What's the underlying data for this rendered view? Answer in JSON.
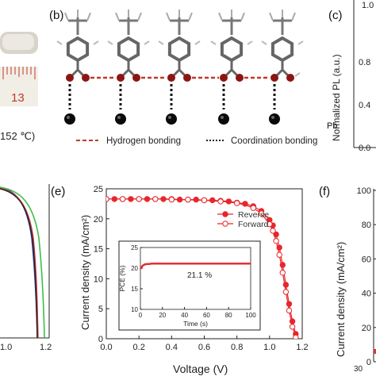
{
  "panels": {
    "a": {
      "ruler_number": "13",
      "temperature_text": "152 ℃)"
    },
    "b": {
      "label": "(b)",
      "atom_label": "Pb",
      "legend": {
        "hydrogen": "Hydrogen bonding",
        "coordination": "Coordination bonding"
      }
    },
    "c": {
      "label": "(c)",
      "ylabel": "Normalized PL (a.u.)",
      "top_tick": "1.0",
      "yticks": [
        "0.8",
        "0.4",
        "0.0"
      ]
    },
    "d": {
      "xticks": [
        "1.0",
        "1.2"
      ]
    },
    "f": {
      "label": "(f)",
      "ylabel": "Current density (mA/cm²)",
      "yticks": [
        "100",
        "80",
        "60",
        "40",
        "20",
        "0"
      ],
      "xtick_partial": "30"
    }
  },
  "chart_data": [
    {
      "panel": "e",
      "type": "line",
      "label": "(e)",
      "xlabel": "Voltage (V)",
      "ylabel": "Current density (mA/cm²)",
      "xlim": [
        0,
        1.2
      ],
      "ylim": [
        0,
        25
      ],
      "xticks": [
        "0.0",
        "0.2",
        "0.4",
        "0.6",
        "0.8",
        "1.0",
        "1.2"
      ],
      "yticks": [
        "0",
        "5",
        "10",
        "15",
        "20",
        "25"
      ],
      "legend_position": "top-right",
      "series": [
        {
          "name": "Reverse",
          "marker": "filled-circle",
          "color": "#e8262b",
          "x": [
            0,
            0.05,
            0.1,
            0.15,
            0.2,
            0.25,
            0.3,
            0.35,
            0.4,
            0.45,
            0.5,
            0.55,
            0.6,
            0.65,
            0.7,
            0.75,
            0.8,
            0.85,
            0.9,
            0.95,
            1.0,
            1.02,
            1.04,
            1.06,
            1.08,
            1.1,
            1.12,
            1.14,
            1.16,
            1.18
          ],
          "values": [
            23.3,
            23.3,
            23.3,
            23.3,
            23.3,
            23.3,
            23.3,
            23.3,
            23.3,
            23.2,
            23.2,
            23.2,
            23.1,
            23.1,
            23.0,
            22.9,
            22.7,
            22.5,
            22.1,
            21.3,
            19.8,
            18.9,
            17.4,
            15.2,
            12.3,
            9.0,
            5.8,
            2.9,
            0.8,
            -0.5
          ]
        },
        {
          "name": "Forward",
          "marker": "open-circle",
          "color": "#e8262b",
          "x": [
            0,
            0.05,
            0.1,
            0.15,
            0.2,
            0.25,
            0.3,
            0.35,
            0.4,
            0.45,
            0.5,
            0.55,
            0.6,
            0.65,
            0.7,
            0.75,
            0.8,
            0.85,
            0.9,
            0.95,
            1.0,
            1.02,
            1.04,
            1.06,
            1.08,
            1.1,
            1.12,
            1.14,
            1.16,
            1.18
          ],
          "values": [
            23.3,
            23.3,
            23.3,
            23.3,
            23.3,
            23.3,
            23.3,
            23.3,
            23.2,
            23.2,
            23.2,
            23.1,
            23.1,
            23.0,
            22.9,
            22.8,
            22.6,
            22.3,
            21.8,
            20.9,
            19.1,
            18.0,
            16.3,
            14.0,
            11.0,
            7.8,
            4.7,
            2.0,
            0.2,
            -0.5
          ]
        }
      ],
      "inset": {
        "type": "line",
        "xlabel": "Time (s)",
        "ylabel": "PCE (%)",
        "xlim": [
          0,
          100
        ],
        "ylim": [
          10,
          25
        ],
        "xticks": [
          "0",
          "20",
          "40",
          "60",
          "80",
          "100"
        ],
        "yticks": [
          "10",
          "15",
          "20",
          "25"
        ],
        "annotation": "21.1 %",
        "x": [
          0,
          2,
          4,
          6,
          8,
          10,
          15,
          20,
          25,
          30,
          35,
          40,
          45,
          50,
          55,
          60,
          65,
          70,
          75,
          80,
          85,
          90,
          95,
          100
        ],
        "values": [
          19.8,
          20.6,
          20.9,
          21.0,
          21.0,
          21.1,
          21.1,
          21.1,
          21.1,
          21.1,
          21.1,
          21.1,
          21.1,
          21.1,
          21.1,
          21.1,
          21.1,
          21.1,
          21.1,
          21.1,
          21.1,
          21.1,
          21.1,
          21.1
        ],
        "color": "#e8262b"
      }
    }
  ]
}
